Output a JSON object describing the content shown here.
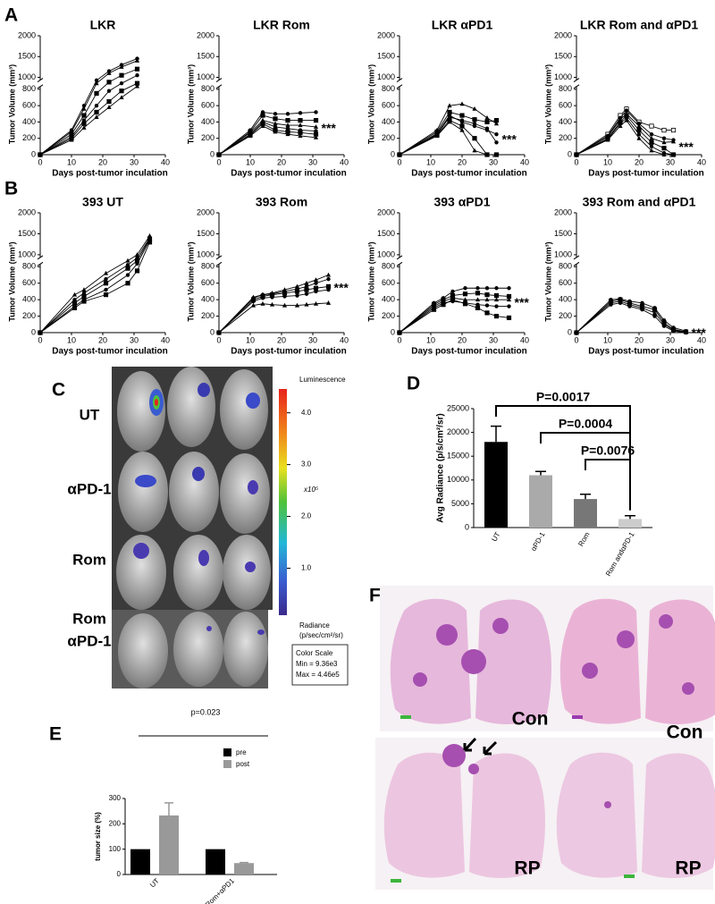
{
  "panels": [
    "A",
    "B",
    "C",
    "D",
    "E",
    "F"
  ],
  "chart_data": [
    {
      "type": "line",
      "title": "LKR",
      "xlabel": "Days post-tumor inculation",
      "ylabel": "Tumor Volume (mm³)",
      "xlim": [
        0,
        40
      ],
      "xticks": [
        0,
        10,
        20,
        30,
        40
      ],
      "ylim": [
        0,
        2000
      ],
      "yticks": [
        0,
        200,
        400,
        600,
        800,
        1000,
        1500,
        2000
      ],
      "y_break": [
        800,
        1000
      ],
      "x": [
        0,
        10,
        14,
        18,
        22,
        26,
        31
      ],
      "series": [
        {
          "color": "#000",
          "marker": "circle",
          "values": [
            0,
            300,
            600,
            950,
            1150,
            1300,
            1450
          ]
        },
        {
          "color": "#000",
          "marker": "triangle",
          "values": [
            0,
            280,
            560,
            900,
            1100,
            1250,
            1400
          ]
        },
        {
          "color": "#000",
          "marker": "square",
          "values": [
            0,
            250,
            480,
            750,
            920,
            1050,
            1200
          ]
        },
        {
          "color": "#000",
          "marker": "circle",
          "values": [
            0,
            220,
            420,
            600,
            780,
            900,
            1050
          ]
        },
        {
          "color": "#000",
          "marker": "square",
          "values": [
            0,
            200,
            380,
            520,
            650,
            780,
            900
          ]
        },
        {
          "color": "#000",
          "marker": "triangle",
          "values": [
            0,
            180,
            330,
            460,
            580,
            700,
            850
          ]
        }
      ]
    },
    {
      "type": "line",
      "title": "LKR Rom",
      "xlabel": "Days post-tumor inculation",
      "ylabel": "Tumor Volume (mm³)",
      "xlim": [
        0,
        40
      ],
      "xticks": [
        0,
        10,
        20,
        30,
        40
      ],
      "ylim": [
        0,
        2000
      ],
      "yticks": [
        0,
        200,
        400,
        600,
        800,
        1000,
        1500,
        2000
      ],
      "y_break": [
        800,
        1000
      ],
      "annotation": "***",
      "x": [
        0,
        10,
        14,
        18,
        22,
        26,
        31
      ],
      "series": [
        {
          "color": "#000",
          "marker": "circle",
          "values": [
            0,
            300,
            520,
            500,
            500,
            510,
            520
          ]
        },
        {
          "color": "#000",
          "marker": "square",
          "values": [
            0,
            280,
            480,
            440,
            420,
            420,
            420
          ]
        },
        {
          "color": "#000",
          "marker": "triangle",
          "values": [
            0,
            270,
            420,
            380,
            360,
            360,
            340
          ]
        },
        {
          "color": "#000",
          "marker": "circle",
          "values": [
            0,
            250,
            400,
            340,
            320,
            300,
            290
          ]
        },
        {
          "color": "#000",
          "marker": "square",
          "values": [
            0,
            240,
            380,
            300,
            280,
            270,
            250
          ]
        },
        {
          "color": "#000",
          "marker": "triangle",
          "values": [
            0,
            230,
            350,
            280,
            250,
            230,
            210
          ]
        }
      ]
    },
    {
      "type": "line",
      "title": "LKR αPD1",
      "xlabel": "Days post-tumor inculation",
      "ylabel": "Tumor Volume (mm³)",
      "xlim": [
        0,
        40
      ],
      "xticks": [
        0,
        10,
        20,
        30,
        40
      ],
      "ylim": [
        0,
        2000
      ],
      "yticks": [
        0,
        200,
        400,
        600,
        800,
        1000,
        1500,
        2000
      ],
      "y_break": [
        800,
        1000
      ],
      "annotation": "***",
      "x": [
        0,
        12,
        16,
        20,
        24,
        28,
        31
      ],
      "series": [
        {
          "color": "#000",
          "marker": "triangle",
          "values": [
            0,
            300,
            600,
            620,
            560,
            450,
            380
          ]
        },
        {
          "color": "#000",
          "marker": "square",
          "values": [
            0,
            280,
            520,
            480,
            430,
            400,
            420
          ]
        },
        {
          "color": "#000",
          "marker": "circle",
          "values": [
            0,
            260,
            480,
            400,
            350,
            300,
            250
          ]
        },
        {
          "color": "#000",
          "marker": "circle",
          "values": [
            0,
            250,
            460,
            420,
            380,
            320,
            150
          ]
        },
        {
          "color": "#000",
          "marker": "square",
          "values": [
            0,
            240,
            420,
            350,
            200,
            0,
            0
          ]
        },
        {
          "color": "#000",
          "marker": "triangle",
          "values": [
            0,
            230,
            400,
            300,
            50,
            0,
            0
          ]
        }
      ]
    },
    {
      "type": "line",
      "title": "LKR Rom and αPD1",
      "xlabel": "Days post-tumor inculation",
      "ylabel": "Tumor Volume (mm³)",
      "xlim": [
        0,
        40
      ],
      "xticks": [
        0,
        10,
        20,
        30,
        40
      ],
      "ylim": [
        0,
        2000
      ],
      "yticks": [
        0,
        200,
        400,
        600,
        800,
        1000,
        1500,
        2000
      ],
      "y_break": [
        800,
        1000
      ],
      "annotation": "***",
      "x": [
        0,
        10,
        14,
        16,
        20,
        24,
        28,
        31
      ],
      "series": [
        {
          "color": "#000",
          "marker": "open-square",
          "values": [
            0,
            250,
            480,
            560,
            400,
            350,
            300,
            300
          ]
        },
        {
          "color": "#000",
          "marker": "circle",
          "values": [
            0,
            230,
            450,
            540,
            380,
            250,
            200,
            180
          ]
        },
        {
          "color": "#000",
          "marker": "triangle",
          "values": [
            0,
            220,
            430,
            500,
            350,
            200,
            150,
            160
          ]
        },
        {
          "color": "#000",
          "marker": "square",
          "values": [
            0,
            200,
            400,
            480,
            300,
            150,
            80,
            0
          ]
        },
        {
          "color": "#000",
          "marker": "circle",
          "values": [
            0,
            190,
            380,
            450,
            250,
            100,
            20,
            0
          ]
        },
        {
          "color": "#000",
          "marker": "triangle",
          "values": [
            0,
            180,
            350,
            420,
            200,
            50,
            0,
            0
          ]
        }
      ]
    },
    {
      "type": "line",
      "title": "393 UT",
      "xlabel": "Days post-tumor inculation",
      "ylabel": "Tumor Volume (mm³)",
      "xlim": [
        0,
        40
      ],
      "xticks": [
        0,
        10,
        20,
        30,
        40
      ],
      "ylim": [
        0,
        2000
      ],
      "yticks": [
        0,
        200,
        400,
        600,
        800,
        1000,
        1500,
        2000
      ],
      "y_break": [
        800,
        1000
      ],
      "x": [
        0,
        11,
        14,
        21,
        28,
        31,
        35
      ],
      "series": [
        {
          "color": "#000",
          "marker": "triangle",
          "values": [
            0,
            460,
            520,
            720,
            900,
            1000,
            1450
          ]
        },
        {
          "color": "#000",
          "marker": "circle",
          "values": [
            0,
            400,
            480,
            650,
            830,
            950,
            1400
          ]
        },
        {
          "color": "#000",
          "marker": "square",
          "values": [
            0,
            360,
            440,
            600,
            780,
            900,
            1380
          ]
        },
        {
          "color": "#000",
          "marker": "circle",
          "values": [
            0,
            320,
            400,
            520,
            700,
            850,
            1350
          ]
        },
        {
          "color": "#000",
          "marker": "square",
          "values": [
            0,
            300,
            380,
            460,
            600,
            750,
            1300
          ]
        }
      ]
    },
    {
      "type": "line",
      "title": "393 Rom",
      "xlabel": "Days post-tumor inculation",
      "ylabel": "Tumor Volume (mm³)",
      "xlim": [
        0,
        40
      ],
      "xticks": [
        0,
        10,
        20,
        30,
        40
      ],
      "ylim": [
        0,
        2000
      ],
      "yticks": [
        0,
        200,
        400,
        600,
        800,
        1000,
        1500,
        2000
      ],
      "y_break": [
        800,
        1000
      ],
      "annotation": "***",
      "x": [
        0,
        11,
        14,
        17,
        21,
        25,
        28,
        31,
        35
      ],
      "series": [
        {
          "color": "#000",
          "marker": "triangle",
          "values": [
            0,
            430,
            460,
            480,
            520,
            560,
            600,
            640,
            700
          ]
        },
        {
          "color": "#000",
          "marker": "circle",
          "values": [
            0,
            420,
            460,
            470,
            500,
            530,
            560,
            600,
            650
          ]
        },
        {
          "color": "#000",
          "marker": "square",
          "values": [
            0,
            400,
            440,
            460,
            480,
            500,
            520,
            540,
            560
          ]
        },
        {
          "color": "#000",
          "marker": "circle",
          "values": [
            0,
            380,
            420,
            430,
            440,
            450,
            470,
            500,
            520
          ]
        },
        {
          "color": "#000",
          "marker": "triangle",
          "values": [
            0,
            330,
            350,
            340,
            330,
            330,
            340,
            350,
            360
          ]
        }
      ]
    },
    {
      "type": "line",
      "title": "393 αPD1",
      "xlabel": "Days post-tumor inculation",
      "ylabel": "Tumor Volume (mm³)",
      "xlim": [
        0,
        40
      ],
      "xticks": [
        0,
        10,
        20,
        30,
        40
      ],
      "ylim": [
        0,
        2000
      ],
      "yticks": [
        0,
        200,
        400,
        600,
        800,
        1000,
        1500,
        2000
      ],
      "y_break": [
        800,
        1000
      ],
      "annotation": "***",
      "x": [
        0,
        11,
        14,
        17,
        21,
        25,
        28,
        31,
        35
      ],
      "series": [
        {
          "color": "#000",
          "marker": "circle",
          "values": [
            0,
            360,
            420,
            500,
            540,
            540,
            540,
            540,
            540
          ]
        },
        {
          "color": "#000",
          "marker": "square",
          "values": [
            0,
            340,
            400,
            450,
            470,
            480,
            460,
            450,
            440
          ]
        },
        {
          "color": "#000",
          "marker": "triangle",
          "values": [
            0,
            320,
            380,
            420,
            400,
            400,
            400,
            400,
            400
          ]
        },
        {
          "color": "#000",
          "marker": "circle",
          "values": [
            0,
            300,
            360,
            380,
            360,
            340,
            330,
            320,
            320
          ]
        },
        {
          "color": "#000",
          "marker": "square",
          "values": [
            0,
            280,
            340,
            400,
            350,
            300,
            240,
            200,
            180
          ]
        }
      ]
    },
    {
      "type": "line",
      "title": "393 Rom and αPD1",
      "xlabel": "Days post-tumor inculation",
      "ylabel": "Tumor Volume (mm³)",
      "xlim": [
        0,
        40
      ],
      "xticks": [
        0,
        10,
        20,
        30,
        40
      ],
      "ylim": [
        0,
        2000
      ],
      "yticks": [
        0,
        200,
        400,
        600,
        800,
        1000,
        1500,
        2000
      ],
      "y_break": [
        800,
        1000
      ],
      "annotation": "***",
      "x": [
        0,
        11,
        14,
        17,
        21,
        25,
        28,
        31,
        35
      ],
      "series": [
        {
          "color": "#000",
          "marker": "circle",
          "values": [
            0,
            400,
            410,
            380,
            360,
            300,
            150,
            60,
            20
          ]
        },
        {
          "color": "#000",
          "marker": "square",
          "values": [
            0,
            380,
            400,
            360,
            320,
            280,
            120,
            40,
            10
          ]
        },
        {
          "color": "#000",
          "marker": "triangle",
          "values": [
            0,
            360,
            380,
            340,
            300,
            240,
            100,
            30,
            5
          ]
        },
        {
          "color": "#000",
          "marker": "circle",
          "values": [
            0,
            340,
            360,
            320,
            280,
            200,
            80,
            20,
            0
          ]
        }
      ]
    },
    {
      "type": "bar",
      "ylabel": "Avg Radiance (p/s/cm²/sr)",
      "categories": [
        "UT",
        "αPD-1",
        "Rom",
        "Rom andαPD-1"
      ],
      "values": [
        18000,
        11000,
        6000,
        1800
      ],
      "errors": [
        3300,
        800,
        1000,
        700
      ],
      "colors": [
        "#000000",
        "#aaaaaa",
        "#777777",
        "#cccccc"
      ],
      "ylim": [
        0,
        25000
      ],
      "yticks": [
        0,
        5000,
        10000,
        15000,
        20000,
        25000
      ],
      "annotations": [
        "P=0.0017",
        "P=0.0004",
        "P=0.0076"
      ]
    },
    {
      "type": "grouped_bar",
      "ylabel": "tumor size (%)",
      "categories": [
        "UT",
        "Rom+αPD1"
      ],
      "series": [
        {
          "name": "pre",
          "color": "#000000",
          "values": [
            100,
            100
          ]
        },
        {
          "name": "post",
          "color": "#999999",
          "values": [
            233,
            45
          ],
          "errors": [
            50,
            2
          ]
        }
      ],
      "ylim": [
        0,
        300
      ],
      "yticks": [
        0,
        100,
        200,
        300
      ],
      "annotation": "p=0.023",
      "legend": "upper right"
    }
  ],
  "imaging": {
    "row_labels": [
      [
        "UT"
      ],
      [
        "αPD-1"
      ],
      [
        "Rom"
      ],
      [
        "Rom",
        "αPD-1"
      ]
    ],
    "colorbar": {
      "title": "Luminescence",
      "multiplier": "x10⁵",
      "ticks": [
        {
          "value": 100000,
          "label": "1.0"
        },
        {
          "value": 200000,
          "label": "2.0"
        },
        {
          "value": 300000,
          "label": "3.0"
        },
        {
          "value": 400000,
          "label": "4.0"
        }
      ],
      "unit_label": [
        "Radiance",
        "(p/sec/cm²/sr)"
      ],
      "scale_title": "Color Scale",
      "min": {
        "value": 9360,
        "label": "Min = 9.36e3"
      },
      "max": {
        "value": 446000,
        "label": "Max = 4.46e5"
      }
    }
  },
  "histology": {
    "labels": [
      "Con",
      "Con",
      "RP",
      "RP"
    ]
  }
}
